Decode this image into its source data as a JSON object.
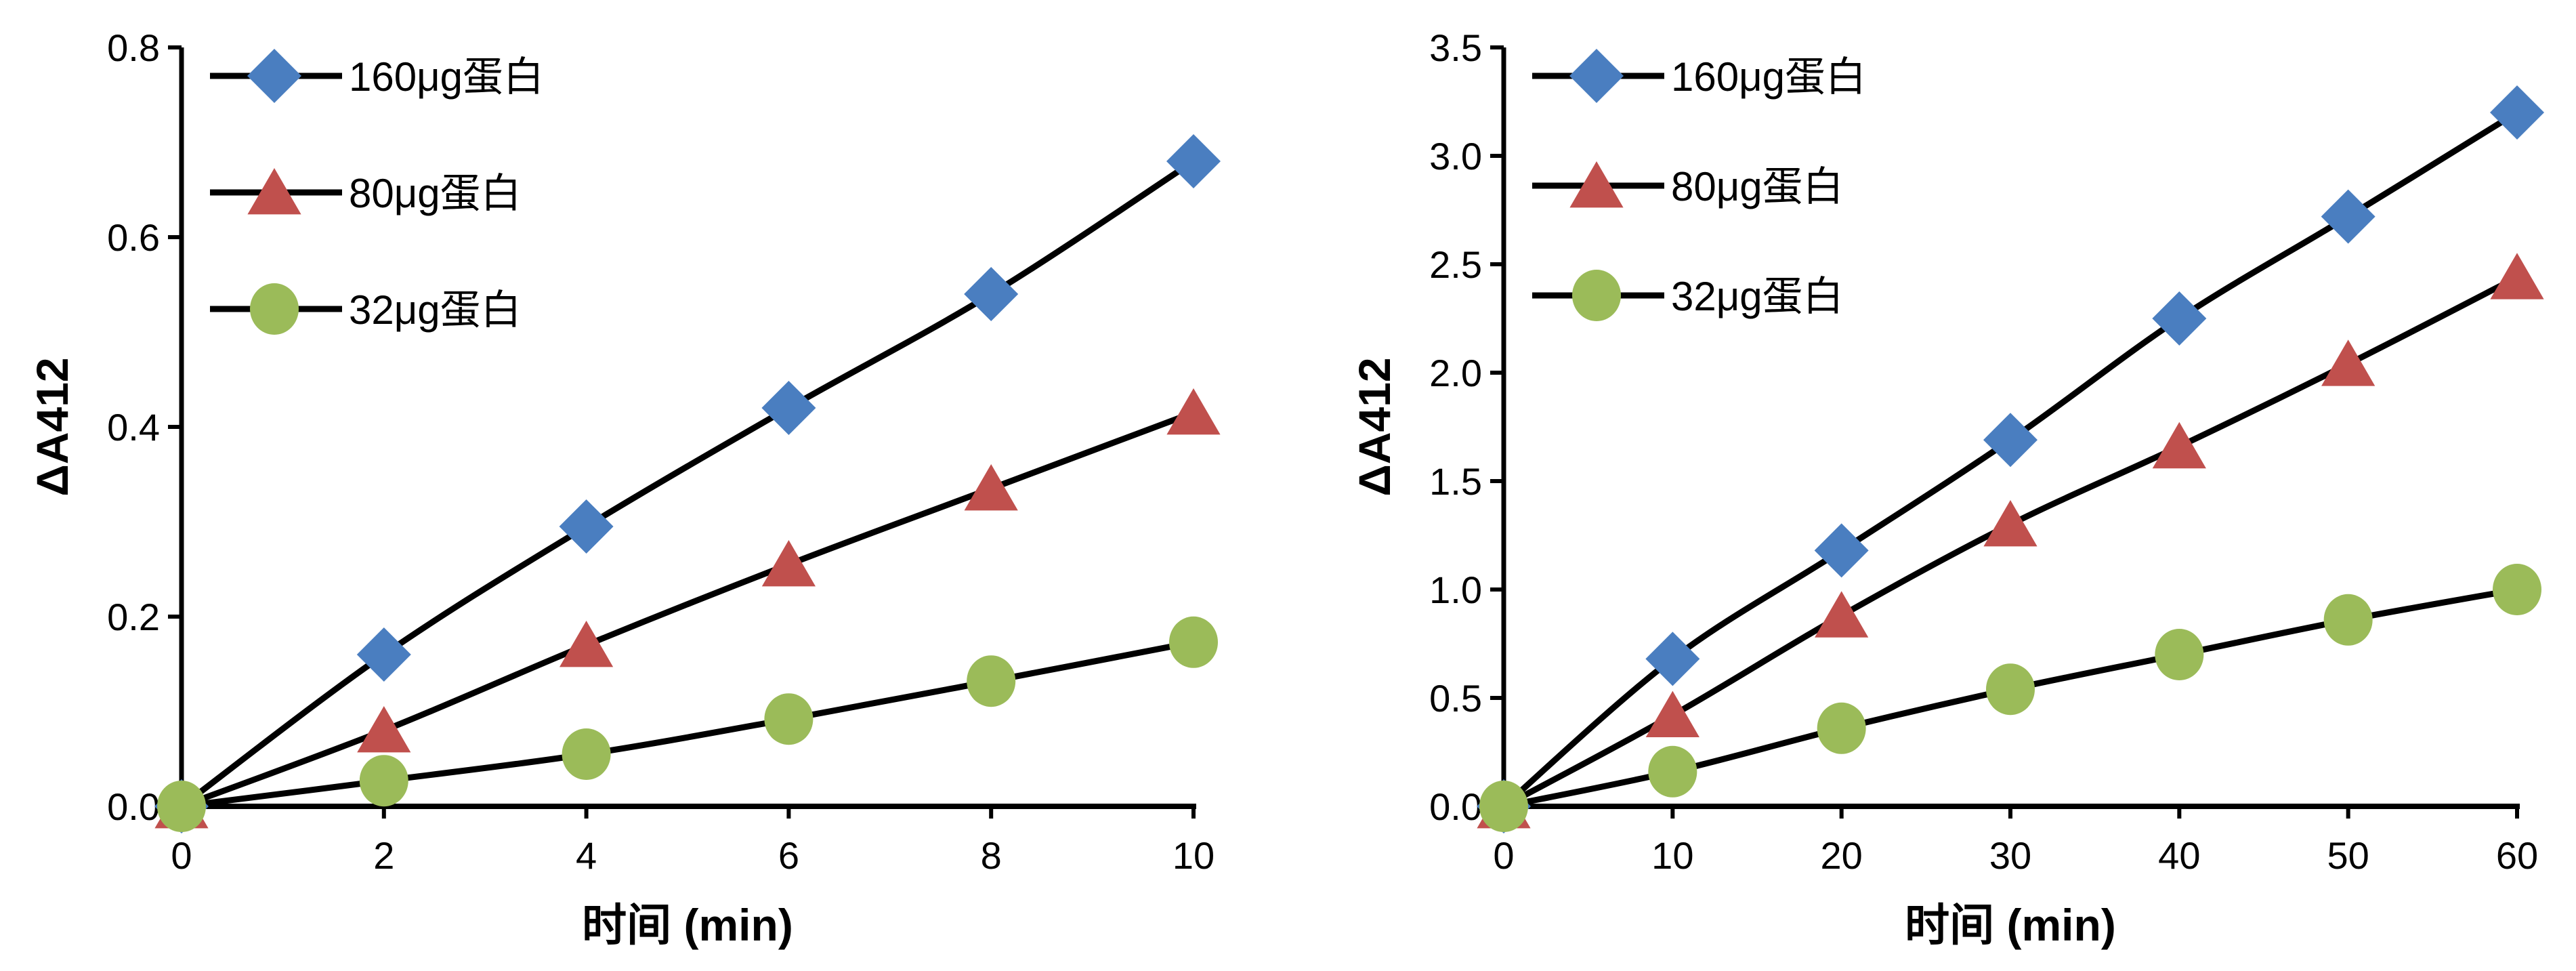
{
  "chart_data": [
    {
      "type": "line",
      "title": "",
      "xlabel": "时间 (min)",
      "ylabel": "ΔA412",
      "xlim": [
        0,
        10
      ],
      "ylim": [
        0,
        0.8
      ],
      "x_ticks": [
        "0",
        "2",
        "4",
        "6",
        "8",
        "10"
      ],
      "y_ticks": [
        "0.0",
        "0.2",
        "0.4",
        "0.6",
        "0.8"
      ],
      "grid": false,
      "legend_position": "top-left",
      "series": [
        {
          "name": "160μg蛋白",
          "marker": "diamond",
          "color": "#4a7ec0",
          "x": [
            0,
            2,
            4,
            6,
            8,
            10
          ],
          "y": [
            0.0,
            0.16,
            0.295,
            0.42,
            0.54,
            0.68
          ]
        },
        {
          "name": "80μg蛋白",
          "marker": "triangle",
          "color": "#c0504d",
          "x": [
            0,
            2,
            4,
            6,
            8,
            10
          ],
          "y": [
            0.0,
            0.08,
            0.17,
            0.255,
            0.335,
            0.415
          ]
        },
        {
          "name": "32μg蛋白",
          "marker": "circle",
          "color": "#9bbb59",
          "x": [
            0,
            2,
            4,
            6,
            8,
            10
          ],
          "y": [
            0.0,
            0.027,
            0.055,
            0.092,
            0.132,
            0.173
          ]
        }
      ]
    },
    {
      "type": "line",
      "title": "",
      "xlabel": "时间 (min)",
      "ylabel": "ΔA412",
      "xlim": [
        0,
        60
      ],
      "ylim": [
        0,
        3.5
      ],
      "x_ticks": [
        "0",
        "10",
        "20",
        "30",
        "40",
        "50",
        "60"
      ],
      "y_ticks": [
        "0.0",
        "0.5",
        "1.0",
        "1.5",
        "2.0",
        "2.5",
        "3.0",
        "3.5"
      ],
      "grid": false,
      "legend_position": "top-left",
      "series": [
        {
          "name": "160μg蛋白",
          "marker": "diamond",
          "color": "#4a7ec0",
          "x": [
            0,
            10,
            20,
            30,
            40,
            50,
            60
          ],
          "y": [
            0.0,
            0.68,
            1.18,
            1.69,
            2.25,
            2.72,
            3.2
          ]
        },
        {
          "name": "80μg蛋白",
          "marker": "triangle",
          "color": "#c0504d",
          "x": [
            0,
            10,
            20,
            30,
            40,
            50,
            60
          ],
          "y": [
            0.0,
            0.42,
            0.88,
            1.3,
            1.66,
            2.04,
            2.44
          ]
        },
        {
          "name": "32μg蛋白",
          "marker": "circle",
          "color": "#9bbb59",
          "x": [
            0,
            10,
            20,
            30,
            40,
            50,
            60
          ],
          "y": [
            0.0,
            0.16,
            0.36,
            0.54,
            0.7,
            0.86,
            1.0
          ]
        }
      ]
    }
  ]
}
